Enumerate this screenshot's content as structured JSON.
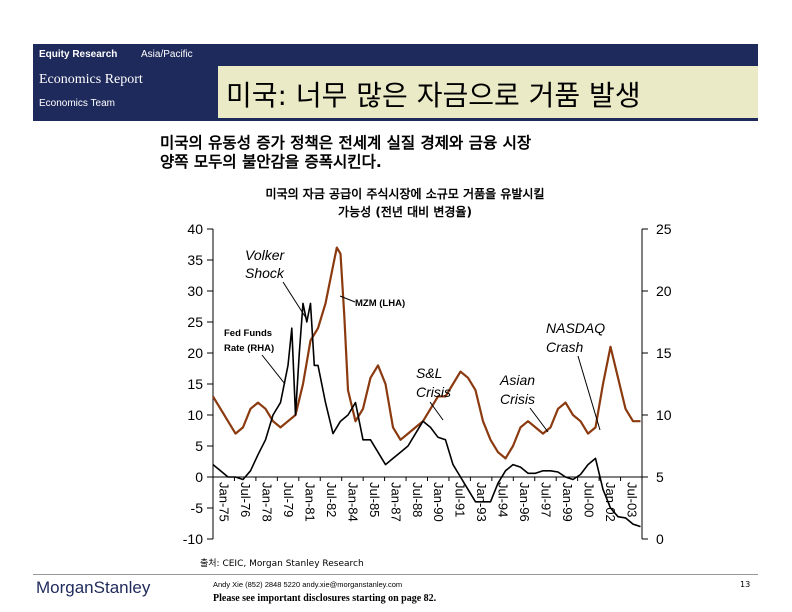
{
  "header": {
    "division": "Equity Research",
    "region": "Asia/Pacific",
    "report_type": "Economics Report",
    "team": "Economics Team",
    "title": "미국: 너무 많은 자금으로 거품 발생"
  },
  "body": {
    "line1": "미국의 유동성 증가 정책은 전세계 실질 경제와 금융 시장",
    "line2": "양쪽 모두의 불안감을 증폭시킨다."
  },
  "chart_data": {
    "type": "line",
    "title_line1": "미국의 자금 공급이 주식시장에 소규모 거품을 유발시킬",
    "title_line2": "가능성 (전년 대비 변경율)",
    "x_ticks": [
      "Jan-75",
      "Jul-76",
      "Jan-78",
      "Jul-79",
      "Jan-81",
      "Jul-82",
      "Jan-84",
      "Jul-85",
      "Jan-87",
      "Jul-88",
      "Jan-90",
      "Jul-91",
      "Jan-93",
      "Jul-94",
      "Jan-96",
      "Jul-97",
      "Jan-99",
      "Jul-00",
      "Jan-02",
      "Jul-03"
    ],
    "y_left": {
      "min": -10,
      "max": 40,
      "ticks": [
        -10,
        -5,
        0,
        5,
        10,
        15,
        20,
        25,
        30,
        35,
        40
      ]
    },
    "y_right": {
      "min": 0,
      "max": 25,
      "ticks": [
        0,
        5,
        10,
        15,
        20,
        25
      ]
    },
    "series": [
      {
        "name": "MZM (LHA)",
        "axis": "left",
        "color": "#8b3a10",
        "x": [
          1975.0,
          1975.5,
          1976.0,
          1976.5,
          1977.0,
          1977.5,
          1978.0,
          1978.5,
          1979.0,
          1979.5,
          1980.0,
          1980.5,
          1981.0,
          1981.5,
          1982.0,
          1982.5,
          1983.0,
          1983.25,
          1983.5,
          1983.75,
          1984.0,
          1984.5,
          1985.0,
          1985.5,
          1986.0,
          1986.5,
          1987.0,
          1987.5,
          1988.0,
          1988.5,
          1989.0,
          1989.5,
          1990.0,
          1990.5,
          1991.0,
          1991.5,
          1992.0,
          1992.5,
          1993.0,
          1993.5,
          1994.0,
          1994.5,
          1995.0,
          1995.5,
          1996.0,
          1996.5,
          1997.0,
          1997.5,
          1998.0,
          1998.5,
          1999.0,
          1999.5,
          2000.0,
          2000.5,
          2001.0,
          2001.5,
          2002.0,
          2002.5,
          2003.0,
          2003.5
        ],
        "y": [
          13,
          11,
          9,
          7,
          8,
          11,
          12,
          11,
          9,
          8,
          9,
          10,
          15,
          22,
          24,
          28,
          34,
          37,
          36,
          26,
          14,
          9,
          11,
          16,
          18,
          15,
          8,
          6,
          7,
          8,
          9,
          11,
          13,
          13,
          15,
          17,
          16,
          14,
          9,
          6,
          4,
          3,
          5,
          8,
          9,
          8,
          7,
          8,
          11,
          12,
          10,
          9,
          7,
          8,
          15,
          21,
          16,
          11,
          9,
          9
        ]
      },
      {
        "name": "Fed Funds Rate (RHA)",
        "axis": "right",
        "color": "#000000",
        "x": [
          1975.0,
          1975.5,
          1976.0,
          1976.5,
          1977.0,
          1977.5,
          1978.0,
          1978.5,
          1979.0,
          1979.5,
          1980.0,
          1980.25,
          1980.5,
          1980.75,
          1981.0,
          1981.25,
          1981.5,
          1981.75,
          1982.0,
          1982.5,
          1983.0,
          1983.5,
          1984.0,
          1984.5,
          1985.0,
          1985.5,
          1986.0,
          1986.5,
          1987.0,
          1987.5,
          1988.0,
          1988.5,
          1989.0,
          1989.5,
          1990.0,
          1990.5,
          1991.0,
          1991.5,
          1992.0,
          1992.5,
          1993.0,
          1993.5,
          1994.0,
          1994.5,
          1995.0,
          1995.5,
          1996.0,
          1996.5,
          1997.0,
          1997.5,
          1998.0,
          1998.5,
          1999.0,
          1999.5,
          2000.0,
          2000.5,
          2001.0,
          2001.5,
          2002.0,
          2002.5,
          2003.0,
          2003.5
        ],
        "y": [
          6,
          5.5,
          5,
          5,
          4.8,
          5.5,
          6.8,
          8,
          10,
          11,
          14,
          17,
          10,
          15,
          19,
          17.5,
          19,
          14,
          14,
          11,
          8.5,
          9.5,
          10,
          11,
          8,
          8,
          7,
          6,
          6.5,
          7,
          7.5,
          8.5,
          9.5,
          9,
          8.2,
          8,
          6,
          5,
          4,
          3,
          3,
          3,
          4.5,
          5.5,
          6,
          5.8,
          5.3,
          5.3,
          5.5,
          5.5,
          5.4,
          5,
          4.8,
          5.2,
          6,
          6.5,
          4,
          2.5,
          1.8,
          1.7,
          1.2,
          1
        ]
      }
    ],
    "annotations": [
      "Volker Shock",
      "MZM (LHA)",
      "Fed Funds Rate (RHA)",
      "S&L Crisis",
      "Asian Crisis",
      "NASDAQ Crash"
    ]
  },
  "footer": {
    "source": "출처: CEIC, Morgan Stanley Research",
    "logo": "MorganStanley",
    "contact": "Andy Xie (852) 2848 5220  andy.xie@morganstanley.com",
    "disclosure": "Please see important disclosures starting on page 82.",
    "page": "13"
  }
}
